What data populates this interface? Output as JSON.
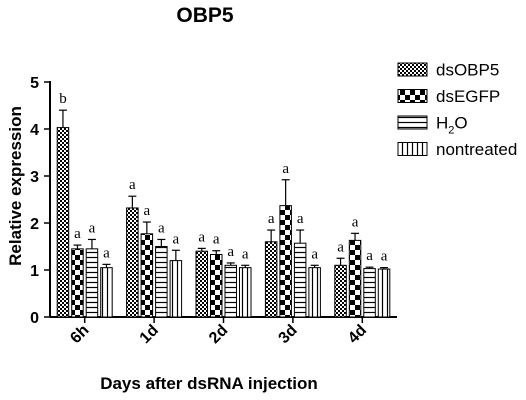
{
  "chart_data": {
    "type": "bar",
    "title": "OBP5",
    "xlabel": "Days after dsRNA injection",
    "ylabel": "Relative expression",
    "ylim": [
      0,
      5
    ],
    "yticks": [
      "0",
      "1",
      "2",
      "3",
      "4",
      "5"
    ],
    "categories": [
      "6h",
      "1d",
      "2d",
      "3d",
      "4d"
    ],
    "legend_position": "top-right",
    "series": [
      {
        "name": "dsOBP5",
        "pattern": "checker-fine",
        "values": [
          4.03,
          2.32,
          1.4,
          1.6,
          1.1
        ],
        "errors": [
          0.37,
          0.25,
          0.06,
          0.25,
          0.15
        ],
        "labels": [
          "b",
          "a",
          "a",
          "a",
          "a"
        ]
      },
      {
        "name": "dsEGFP",
        "pattern": "checker-bold",
        "values": [
          1.45,
          1.77,
          1.33,
          2.37,
          1.63
        ],
        "errors": [
          0.08,
          0.25,
          0.08,
          0.55,
          0.15
        ],
        "labels": [
          "a",
          "a",
          "a",
          "a",
          "a"
        ]
      },
      {
        "name": "H2O",
        "legend_main": "H",
        "legend_sub": "2",
        "legend_tail": "O",
        "pattern": "horizontal",
        "values": [
          1.45,
          1.5,
          1.1,
          1.57,
          1.03
        ],
        "errors": [
          0.2,
          0.15,
          0.05,
          0.28,
          0.03
        ],
        "labels": [
          "a",
          "a",
          "a",
          "a",
          "a"
        ]
      },
      {
        "name": "nontreated",
        "pattern": "vertical",
        "values": [
          1.05,
          1.2,
          1.05,
          1.05,
          1.02
        ],
        "errors": [
          0.07,
          0.22,
          0.05,
          0.05,
          0.03
        ],
        "labels": [
          "a",
          "a",
          "a",
          "a",
          "a"
        ]
      }
    ],
    "grid": false
  }
}
